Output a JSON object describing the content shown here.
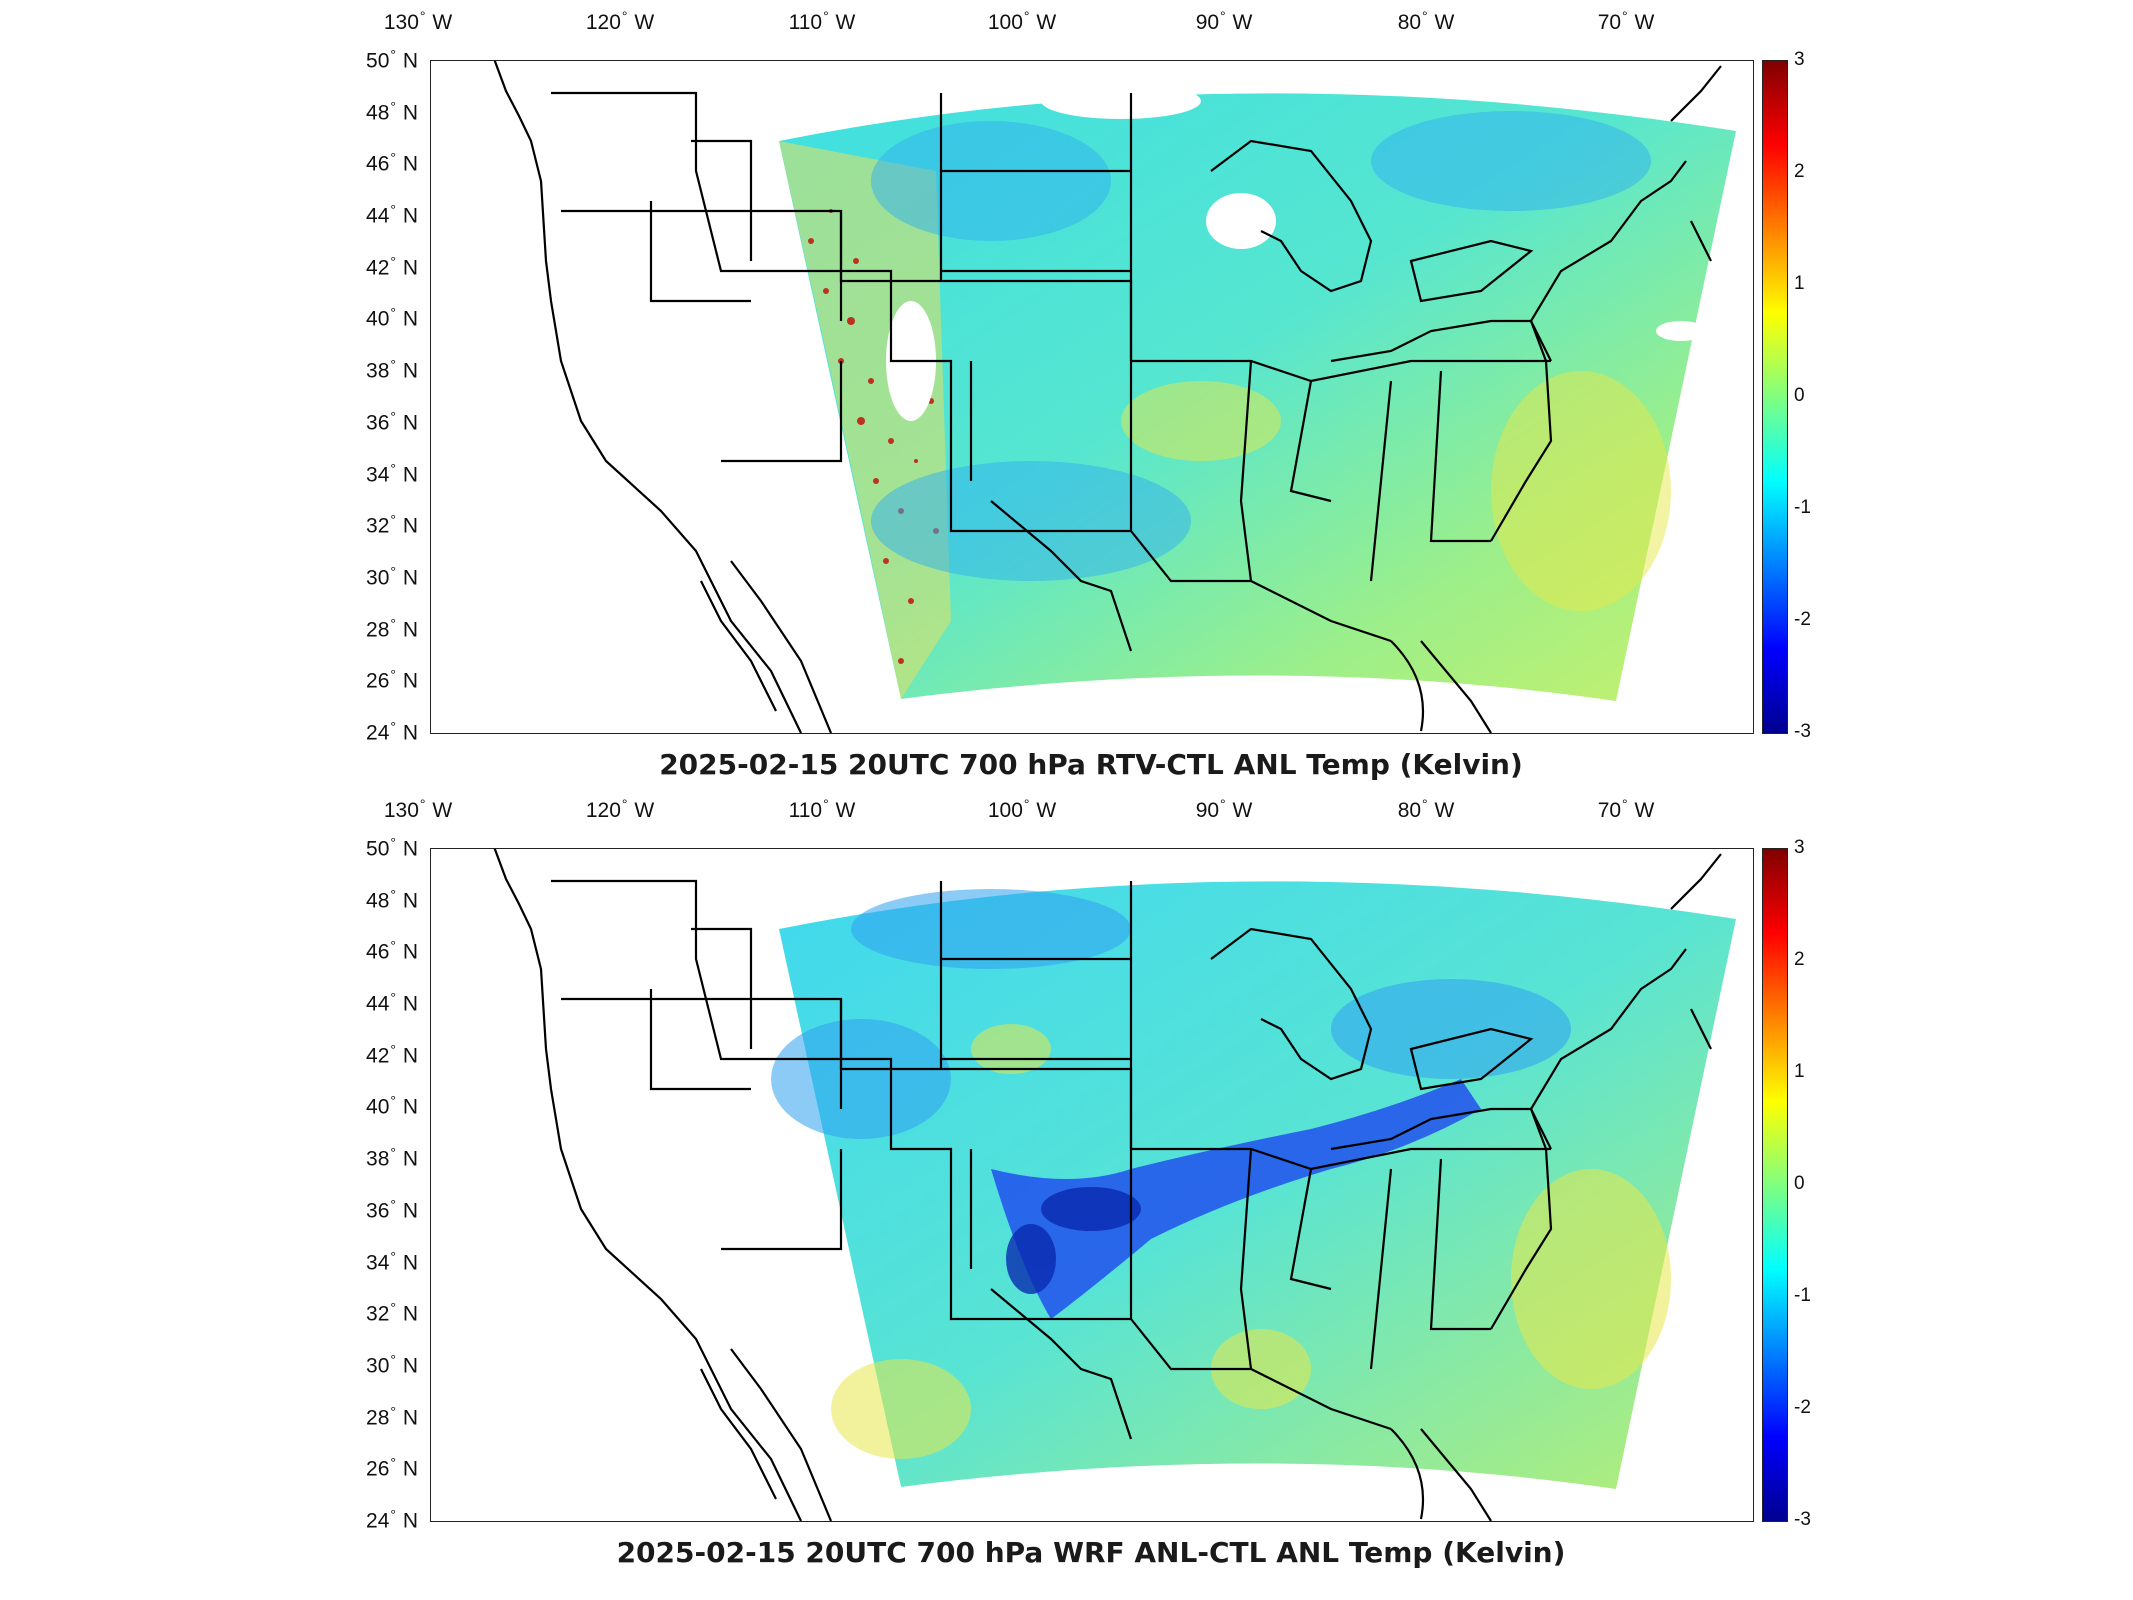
{
  "lon_labels": [
    "130",
    "120",
    "110",
    "100",
    "90",
    "80",
    "70"
  ],
  "lon_suffix": "W",
  "lat_labels": [
    "50",
    "48",
    "46",
    "44",
    "42",
    "40",
    "38",
    "36",
    "34",
    "32",
    "30",
    "28",
    "26",
    "24"
  ],
  "lat_suffix": "N",
  "degree_symbol": "°",
  "colorbar": {
    "ticks": [
      "3",
      "2",
      "1",
      "0",
      "-1",
      "-2",
      "-3"
    ],
    "colormap": "jet",
    "range": [
      -3,
      3
    ]
  },
  "panels": [
    {
      "title": "2025-02-15 20UTC 700 hPa RTV-CTL ANL Temp (Kelvin)"
    },
    {
      "title": "2025-02-15 20UTC 700 hPa WRF ANL-CTL ANL Temp (Kelvin)"
    }
  ],
  "colors": {
    "field_base": "#5fe8c8",
    "high": "#e8e84a",
    "low": "#1a3cf0",
    "hot": "#c0140a"
  }
}
